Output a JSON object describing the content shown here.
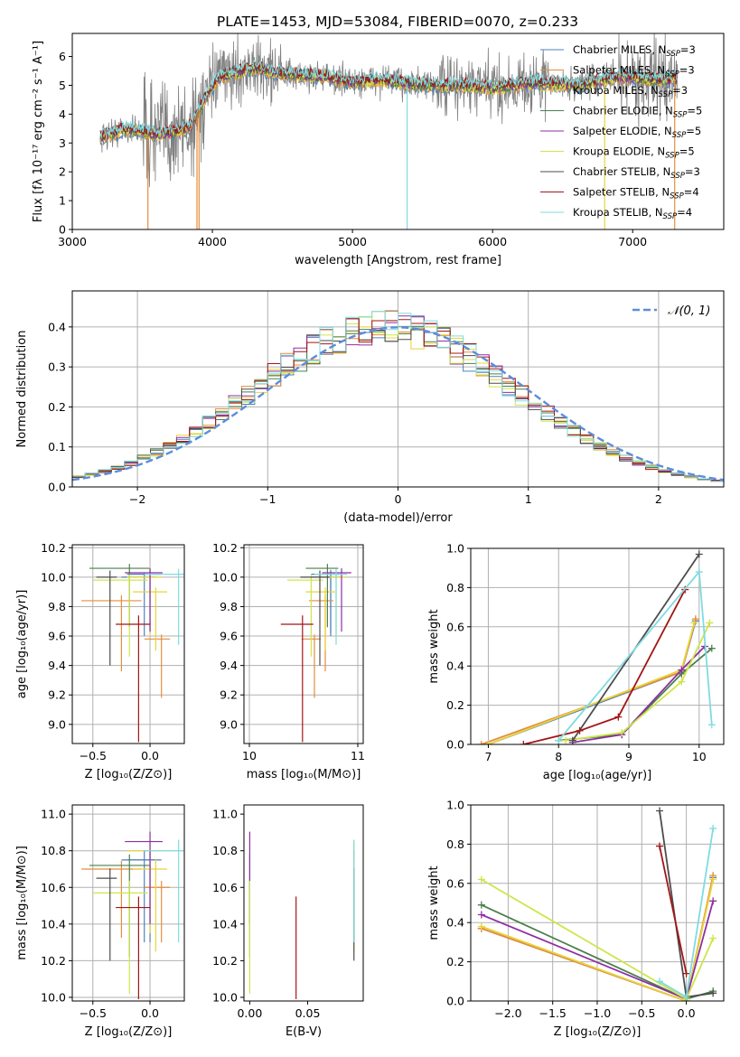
{
  "figure": {
    "title": "PLATE=1453, MJD=53084, FIBERID=0070, z=0.233"
  },
  "colors": {
    "chabrier_miles": "#4f81bd",
    "salpeter_miles": "#e58d3b",
    "kroupa_miles": "#e8d43a",
    "chabrier_elodie": "#4c7f4c",
    "salpeter_elodie": "#8e2fa3",
    "kroupa_elodie": "#cde64a",
    "chabrier_stelib": "#4d4d4d",
    "salpeter_stelib": "#a31515",
    "kroupa_stelib": "#7fdbe0",
    "data": "#808080",
    "gaussian": "#5b8ddb",
    "grid": "#b0b0b0"
  },
  "chart_data": [
    {
      "id": "spectrum",
      "type": "line",
      "xlabel": "wavelength [Angstrom, rest frame]",
      "ylabel": "Flux [fλ 10⁻¹⁷ erg cm⁻² s⁻¹ A⁻¹]",
      "xlim": [
        3000,
        7650
      ],
      "ylim": [
        0,
        6.8
      ],
      "xticks": [
        3000,
        4000,
        5000,
        6000,
        7000
      ],
      "yticks": [
        0,
        1,
        2,
        3,
        4,
        5,
        6
      ],
      "grid": false,
      "legend_position": "right",
      "legend": [
        {
          "key": "chabrier_miles",
          "label": "Chabrier MILES, N",
          "sub": "SSP",
          "tail": "=3"
        },
        {
          "key": "salpeter_miles",
          "label": "Salpeter MILES, N",
          "sub": "SSP",
          "tail": "=3"
        },
        {
          "key": "kroupa_miles",
          "label": "Kroupa MILES, N",
          "sub": "SSP",
          "tail": "=3"
        },
        {
          "key": "chabrier_elodie",
          "label": "Chabrier ELODIE, N",
          "sub": "SSP",
          "tail": "=5"
        },
        {
          "key": "salpeter_elodie",
          "label": "Salpeter ELODIE, N",
          "sub": "SSP",
          "tail": "=5"
        },
        {
          "key": "kroupa_elodie",
          "label": "Kroupa ELODIE, N",
          "sub": "SSP",
          "tail": "=5"
        },
        {
          "key": "chabrier_stelib",
          "label": "Chabrier STELIB, N",
          "sub": "SSP",
          "tail": "=3"
        },
        {
          "key": "salpeter_stelib",
          "label": "Salpeter STELIB, N",
          "sub": "SSP",
          "tail": "=4"
        },
        {
          "key": "kroupa_stelib",
          "label": "Kroupa STELIB, N",
          "sub": "SSP",
          "tail": "=4"
        }
      ],
      "continuum": [
        [
          3200,
          3.2
        ],
        [
          3400,
          3.5
        ],
        [
          3600,
          3.3
        ],
        [
          3750,
          3.4
        ],
        [
          3850,
          3.6
        ],
        [
          3950,
          4.6
        ],
        [
          4050,
          5.3
        ],
        [
          4300,
          5.6
        ],
        [
          4500,
          5.4
        ],
        [
          4800,
          5.3
        ],
        [
          5000,
          5.1
        ],
        [
          5200,
          5.2
        ],
        [
          5500,
          5.0
        ],
        [
          5800,
          5.0
        ],
        [
          6000,
          4.9
        ],
        [
          6300,
          5.1
        ],
        [
          6600,
          5.0
        ],
        [
          6900,
          5.3
        ],
        [
          7200,
          5.2
        ],
        [
          7320,
          5.2
        ]
      ]
    },
    {
      "id": "residuals",
      "type": "histogram",
      "xlabel": "(data-model)/error",
      "ylabel": "Normed distribution",
      "xlim": [
        -2.5,
        2.5
      ],
      "ylim": [
        0,
        0.49
      ],
      "xticks": [
        -2,
        -1,
        0,
        1,
        2
      ],
      "yticks": [
        0.0,
        0.1,
        0.2,
        0.3,
        0.4
      ],
      "grid": true,
      "legend_position": "top-right",
      "gaussian_label": "𝒩(0, 1)",
      "bin_width": 0.1
    },
    {
      "id": "age_vs_Z",
      "type": "errorbar",
      "xlabel": "Z [log₁₀(Z/Z⊙)]",
      "ylabel": "age  [log₁₀(age/yr)]",
      "xlim": [
        -0.68,
        0.3
      ],
      "ylim": [
        8.87,
        10.22
      ],
      "xticks": [
        -0.5,
        0.0
      ],
      "yticks": [
        9.0,
        9.2,
        9.4,
        9.6,
        9.8,
        10.0,
        10.2
      ],
      "grid": true
    },
    {
      "id": "age_vs_mass",
      "type": "errorbar",
      "xlabel": "mass [log₁₀(M/M⊙)]",
      "ylabel": "",
      "xlim": [
        9.95,
        11.05
      ],
      "ylim": [
        8.87,
        10.22
      ],
      "xticks": [
        10,
        11
      ],
      "yticks": [
        9.0,
        9.2,
        9.4,
        9.6,
        9.8,
        10.0,
        10.2
      ],
      "grid": true
    },
    {
      "id": "massweight_vs_age",
      "type": "line",
      "xlabel": "age  [log₁₀(age/yr)]",
      "ylabel": "mass weight",
      "xlim": [
        6.75,
        10.35
      ],
      "ylim": [
        0,
        1
      ],
      "xticks": [
        7,
        8,
        9,
        10
      ],
      "yticks": [
        0.0,
        0.2,
        0.4,
        0.6,
        0.8,
        1.0
      ],
      "grid": true
    },
    {
      "id": "mass_vs_Z",
      "type": "errorbar",
      "xlabel": "Z [log₁₀(Z/Z⊙)]",
      "ylabel": "mass [log₁₀(M/M⊙)]",
      "xlim": [
        -0.68,
        0.3
      ],
      "ylim": [
        9.98,
        11.05
      ],
      "xticks": [
        -0.5,
        0.0
      ],
      "yticks": [
        10.0,
        10.2,
        10.4,
        10.6,
        10.8,
        11.0
      ],
      "grid": true
    },
    {
      "id": "mass_vs_ebv",
      "type": "errorbar",
      "xlabel": "E(B-V)",
      "ylabel": "",
      "xlim": [
        -0.005,
        0.098
      ],
      "ylim": [
        9.98,
        11.05
      ],
      "xticks": [
        0.0,
        0.05
      ],
      "yticks": [
        10.0,
        10.2,
        10.4,
        10.6,
        10.8,
        11.0
      ],
      "grid": false
    },
    {
      "id": "massweight_vs_Z",
      "type": "line",
      "xlabel": "Z [log₁₀(Z/Z⊙)]",
      "ylabel": "mass weight",
      "xlim": [
        -2.42,
        0.42
      ],
      "ylim": [
        0,
        1
      ],
      "xticks": [
        -2.0,
        -1.5,
        -1.0,
        -0.5,
        0.0
      ],
      "yticks": [
        0.0,
        0.2,
        0.4,
        0.6,
        0.8,
        1.0
      ],
      "grid": true
    }
  ],
  "fits": [
    {
      "key": "chabrier_miles",
      "age": [
        10.0,
        10.02
      ],
      "age_err": [
        0.1,
        0.1
      ],
      "Z": [
        -0.05,
        0.0
      ],
      "Z_err": [
        0.2,
        0.2
      ],
      "mass": [
        10.75,
        10.75
      ],
      "mass_err": [
        0.18,
        0.18
      ],
      "ebv": 0.09,
      "sw_age": [
        7.0,
        9.75,
        9.95
      ],
      "sw_agew": [
        0.0,
        0.37,
        0.63
      ],
      "sw_Z": [
        -2.3,
        0.0,
        0.3
      ],
      "sw_Zw": [
        0.37,
        0.0,
        0.63
      ]
    },
    {
      "key": "salpeter_miles",
      "age": [
        9.84,
        9.58
      ],
      "age_err": [
        0.12,
        0.1
      ],
      "Z": [
        -0.25,
        0.1
      ],
      "Z_err": [
        0.35,
        0.15
      ],
      "mass": [
        10.7,
        10.6
      ],
      "mass_err": [
        0.15,
        0.12
      ],
      "ebv": 0.09,
      "sw_age": [
        6.9,
        9.75,
        9.95
      ],
      "sw_agew": [
        0.0,
        0.37,
        0.64
      ],
      "sw_Z": [
        -2.3,
        0.0,
        0.3
      ],
      "sw_Zw": [
        0.37,
        0.0,
        0.64
      ]
    },
    {
      "key": "kroupa_miles",
      "age": [
        10.0,
        9.9
      ],
      "age_err": [
        0.1,
        0.1
      ],
      "Z": [
        0.0,
        0.05
      ],
      "Z_err": [
        0.2,
        0.2
      ],
      "mass": [
        10.8,
        10.7
      ],
      "mass_err": [
        0.18,
        0.18
      ],
      "ebv": 0.09,
      "sw_age": [
        7.0,
        9.75,
        9.93
      ],
      "sw_agew": [
        0.0,
        0.38,
        0.62
      ],
      "sw_Z": [
        -2.3,
        0.0,
        0.3
      ],
      "sw_Zw": [
        0.38,
        0.0,
        0.62
      ]
    },
    {
      "key": "chabrier_elodie",
      "age": [
        10.06
      ],
      "age_err": [
        0.1
      ],
      "Z": [
        -0.18
      ],
      "Z_err": [
        0.35
      ],
      "mass": [
        10.72
      ],
      "mass_err": [
        0.2
      ],
      "ebv": 0.0,
      "sw_age": [
        8.0,
        8.9,
        9.75,
        10.18
      ],
      "sw_agew": [
        0.02,
        0.05,
        0.36,
        0.49
      ],
      "sw_Z": [
        -2.3,
        0.0,
        0.3
      ],
      "sw_Zw": [
        0.49,
        0.01,
        0.05
      ]
    },
    {
      "key": "salpeter_elodie",
      "age": [
        10.03
      ],
      "age_err": [
        0.1
      ],
      "Z": [
        0.0
      ],
      "Z_err": [
        0.22
      ],
      "mass": [
        10.85
      ],
      "mass_err": [
        0.18
      ],
      "ebv": 0.0,
      "sw_age": [
        8.2,
        8.9,
        9.75,
        10.08
      ],
      "sw_agew": [
        0.01,
        0.05,
        0.38,
        0.5
      ],
      "sw_Z": [
        -2.3,
        0.0,
        0.3
      ],
      "sw_Zw": [
        0.44,
        0.01,
        0.51
      ]
    },
    {
      "key": "kroupa_elodie",
      "age": [
        9.98
      ],
      "age_err": [
        0.13
      ],
      "Z": [
        -0.18
      ],
      "Z_err": [
        0.32
      ],
      "mass": [
        10.57
      ],
      "mass_err": [
        0.22
      ],
      "ebv": 0.0,
      "sw_age": [
        8.1,
        8.9,
        9.75,
        10.15
      ],
      "sw_agew": [
        0.02,
        0.06,
        0.32,
        0.62
      ],
      "sw_Z": [
        -2.3,
        0.0,
        0.3
      ],
      "sw_Zw": [
        0.62,
        0.01,
        0.32
      ]
    },
    {
      "key": "chabrier_stelib",
      "age": [
        10.0
      ],
      "age_err": [
        0.15
      ],
      "Z": [
        -0.35
      ],
      "Z_err": [
        0.12
      ],
      "mass": [
        10.65
      ],
      "mass_err": [
        0.18
      ],
      "ebv": 0.09,
      "sw_age": [
        8.2,
        10.0
      ],
      "sw_agew": [
        0.02,
        0.97
      ],
      "sw_Z": [
        -0.3,
        0.0,
        0.3
      ],
      "sw_Zw": [
        0.97,
        0.02,
        0.04
      ]
    },
    {
      "key": "salpeter_stelib",
      "age": [
        9.68
      ],
      "age_err": [
        0.2
      ],
      "Z": [
        -0.1
      ],
      "Z_err": [
        0.2
      ],
      "mass": [
        10.49
      ],
      "mass_err": [
        0.2
      ],
      "ebv": 0.04,
      "sw_age": [
        7.5,
        8.3,
        8.85,
        9.8
      ],
      "sw_agew": [
        0.0,
        0.07,
        0.14,
        0.79
      ],
      "sw_Z": [
        -0.3,
        0.0
      ],
      "sw_Zw": [
        0.79,
        0.14
      ]
    },
    {
      "key": "kroupa_stelib",
      "age": [
        10.02
      ],
      "age_err": [
        0.12
      ],
      "Z": [
        0.25
      ],
      "Z_err": [
        0.3
      ],
      "mass": [
        10.8
      ],
      "mass_err": [
        0.2
      ],
      "ebv": 0.09,
      "sw_age": [
        8.0,
        10.0,
        10.18
      ],
      "sw_agew": [
        0.02,
        0.88,
        0.1
      ],
      "sw_Z": [
        -0.3,
        0.0,
        0.3
      ],
      "sw_Zw": [
        0.1,
        0.02,
        0.88
      ]
    }
  ]
}
